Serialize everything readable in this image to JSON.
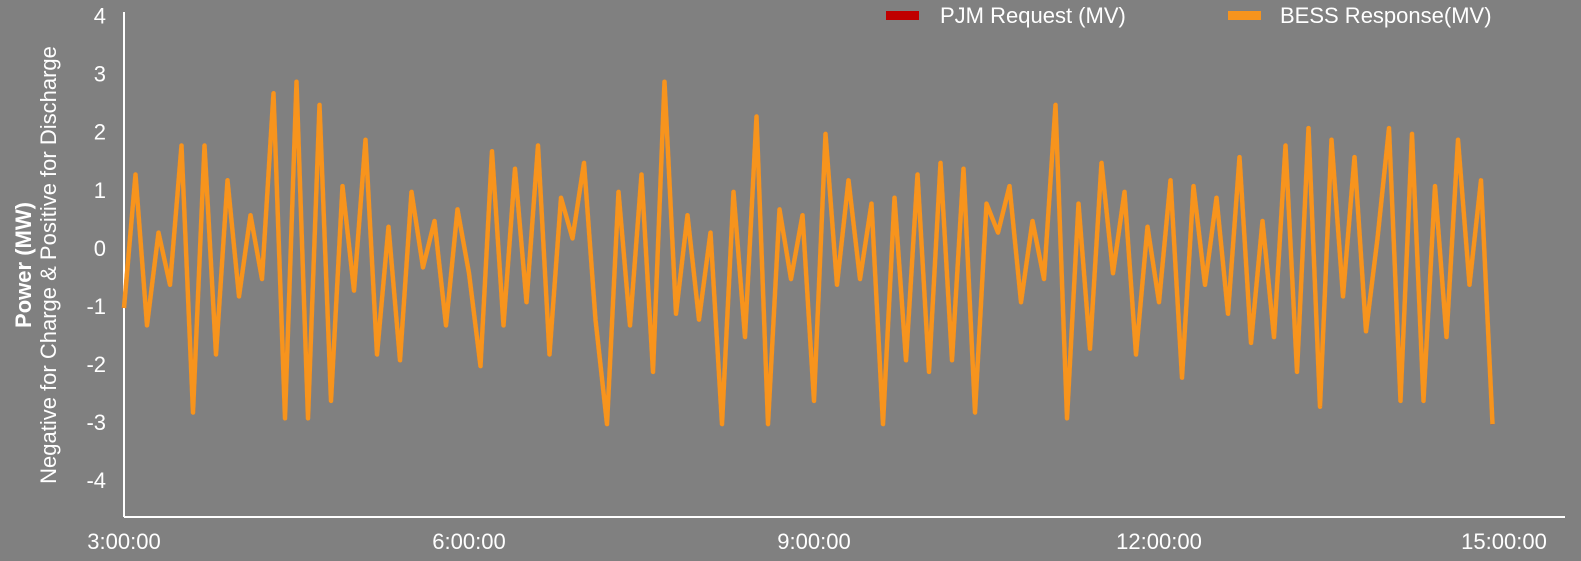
{
  "chart_data": {
    "type": "line",
    "ylabel": [
      "Power (MW)",
      "Negative for Charge & Positive for Discharge"
    ],
    "x": [
      3,
      3.1,
      3.2,
      3.3,
      3.4,
      3.5,
      3.6,
      3.7,
      3.8,
      3.9,
      4,
      4.1,
      4.2,
      4.3,
      4.4,
      4.5,
      4.6,
      4.7,
      4.8,
      4.9,
      5,
      5.1,
      5.2,
      5.3,
      5.4,
      5.5,
      5.6,
      5.7,
      5.8,
      5.9,
      6,
      6.1,
      6.2,
      6.3,
      6.4,
      6.5,
      6.6,
      6.7,
      6.8,
      6.9,
      7,
      7.1,
      7.2,
      7.3,
      7.4,
      7.5,
      7.6,
      7.7,
      7.8,
      7.9,
      8,
      8.1,
      8.2,
      8.3,
      8.4,
      8.5,
      8.6,
      8.7,
      8.8,
      8.9,
      9,
      9.1,
      9.2,
      9.3,
      9.4,
      9.5,
      9.6,
      9.7,
      9.8,
      9.9,
      10,
      10.1,
      10.2,
      10.3,
      10.4,
      10.5,
      10.6,
      10.7,
      10.8,
      10.9,
      11,
      11.1,
      11.2,
      11.3,
      11.4,
      11.5,
      11.6,
      11.7,
      11.8,
      11.9,
      12,
      12.1,
      12.2,
      12.3,
      12.4,
      12.5,
      12.6,
      12.7,
      12.8,
      12.9,
      13,
      13.1,
      13.2,
      13.3,
      13.4,
      13.5,
      13.6,
      13.7,
      13.8,
      13.9,
      14,
      14.1,
      14.2,
      14.3,
      14.4,
      14.5,
      14.6,
      14.7,
      14.8,
      14.9
    ],
    "series": [
      {
        "name": "PJM Request (MV)",
        "color": "#c00000",
        "values": [
          -1.0,
          1.3,
          -1.3,
          0.3,
          -0.6,
          1.8,
          -2.8,
          1.8,
          -1.8,
          1.2,
          -0.8,
          0.6,
          -0.5,
          2.7,
          -2.9,
          2.9,
          -2.9,
          2.5,
          -2.6,
          1.1,
          -0.7,
          1.9,
          -1.8,
          0.4,
          -1.9,
          1.0,
          -0.3,
          0.5,
          -1.3,
          0.7,
          -0.4,
          -2.0,
          1.7,
          -1.3,
          1.4,
          -0.9,
          1.8,
          -1.8,
          0.9,
          0.2,
          1.5,
          -1.2,
          -3.0,
          1.0,
          -1.3,
          1.3,
          -2.1,
          2.9,
          -1.1,
          0.6,
          -1.2,
          0.3,
          -3.0,
          1.0,
          -1.5,
          2.3,
          -3.0,
          0.7,
          -0.5,
          0.6,
          -2.6,
          2.0,
          -0.6,
          1.2,
          -0.5,
          0.8,
          -3.0,
          0.9,
          -1.9,
          1.3,
          -2.1,
          1.5,
          -1.9,
          1.4,
          -2.8,
          0.8,
          0.3,
          1.1,
          -0.9,
          0.5,
          -0.5,
          2.5,
          -2.9,
          0.8,
          -1.7,
          1.5,
          -0.4,
          1.0,
          -1.8,
          0.4,
          -0.9,
          1.2,
          -2.2,
          1.1,
          -0.6,
          0.9,
          -1.1,
          1.6,
          -1.6,
          0.5,
          -1.5,
          1.8,
          -2.1,
          2.1,
          -2.7,
          1.9,
          -0.8,
          1.6,
          -1.4,
          0.2,
          2.1,
          -2.6,
          2.0,
          -2.6,
          1.1,
          -1.5,
          1.9,
          -0.6,
          1.2,
          -3.0
        ]
      },
      {
        "name": "BESS Response(MV)",
        "color": "#f7941d",
        "values": [
          -1.0,
          1.3,
          -1.3,
          0.3,
          -0.6,
          1.8,
          -2.8,
          1.8,
          -1.8,
          1.2,
          -0.8,
          0.6,
          -0.5,
          2.7,
          -2.9,
          2.9,
          -2.9,
          2.5,
          -2.6,
          1.1,
          -0.7,
          1.9,
          -1.8,
          0.4,
          -1.9,
          1.0,
          -0.3,
          0.5,
          -1.3,
          0.7,
          -0.4,
          -2.0,
          1.7,
          -1.3,
          1.4,
          -0.9,
          1.8,
          -1.8,
          0.9,
          0.2,
          1.5,
          -1.2,
          -3.0,
          1.0,
          -1.3,
          1.3,
          -2.1,
          2.9,
          -1.1,
          0.6,
          -1.2,
          0.3,
          -3.0,
          1.0,
          -1.5,
          2.3,
          -3.0,
          0.7,
          -0.5,
          0.6,
          -2.6,
          2.0,
          -0.6,
          1.2,
          -0.5,
          0.8,
          -3.0,
          0.9,
          -1.9,
          1.3,
          -2.1,
          1.5,
          -1.9,
          1.4,
          -2.8,
          0.8,
          0.3,
          1.1,
          -0.9,
          0.5,
          -0.5,
          2.5,
          -2.9,
          0.8,
          -1.7,
          1.5,
          -0.4,
          1.0,
          -1.8,
          0.4,
          -0.9,
          1.2,
          -2.2,
          1.1,
          -0.6,
          0.9,
          -1.1,
          1.6,
          -1.6,
          0.5,
          -1.5,
          1.8,
          -2.1,
          2.1,
          -2.7,
          1.9,
          -0.8,
          1.6,
          -1.4,
          0.2,
          2.1,
          -2.6,
          2.0,
          -2.6,
          1.1,
          -1.5,
          1.9,
          -0.6,
          1.2,
          -3.0
        ]
      }
    ],
    "xlim": [
      3,
      15
    ],
    "xticks": [
      {
        "value": 3,
        "label": "3:00:00"
      },
      {
        "value": 6,
        "label": "6:00:00"
      },
      {
        "value": 9,
        "label": "9:00:00"
      },
      {
        "value": 12,
        "label": "12:00:00"
      },
      {
        "value": 15,
        "label": "15:00:00"
      }
    ],
    "ylim": [
      -4.6,
      4.1
    ],
    "yticks": [
      -4,
      -3,
      -2,
      -1,
      0,
      1,
      2,
      3,
      4
    ],
    "grid": false,
    "legend": "top-right"
  }
}
